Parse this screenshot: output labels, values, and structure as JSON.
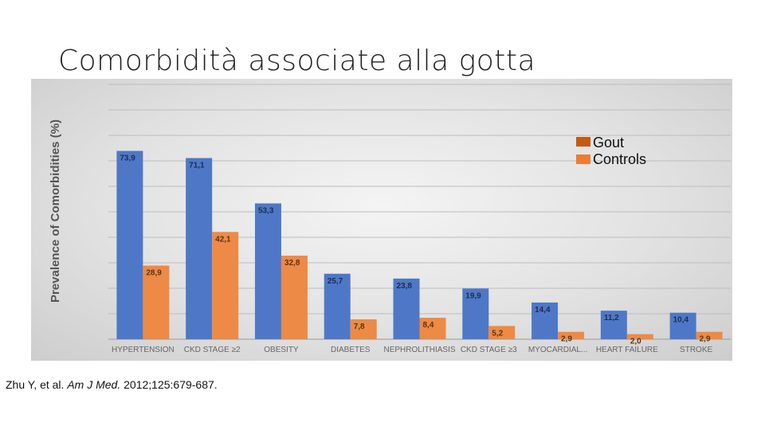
{
  "slide": {
    "title": "Comorbidità associate alla gotta",
    "citation_authors": "Zhu Y, et al.",
    "citation_journal": "Am J Med.",
    "citation_details": "2012;125:679-687."
  },
  "colors": {
    "gout": "#4e78c7",
    "controls": "#ed8a45",
    "legend_gout": "#c55a11",
    "legend_controls": "#ed7d31"
  },
  "chart_data": {
    "type": "bar",
    "ylabel": "Prevalence of Comorbidities (%)",
    "xlabel": "",
    "ylim": [
      0,
      100
    ],
    "grid": true,
    "legend_position": "top-right",
    "categories": [
      "HYPERTENSION",
      "CKD STAGE ≥2",
      "OBESITY",
      "DIABETES",
      "NEPHROLITHIASIS",
      "CKD STAGE ≥3",
      "MYOCARDIAL...",
      "HEART FAILURE",
      "STROKE"
    ],
    "series": [
      {
        "name": "Gout",
        "values": [
          73.9,
          71.1,
          53.3,
          25.7,
          23.8,
          19.9,
          14.4,
          11.2,
          10.4
        ],
        "labels": [
          "73,9",
          "71,1",
          "53,3",
          "25,7",
          "23,8",
          "19,9",
          "14,4",
          "11,2",
          "10,4"
        ]
      },
      {
        "name": "Controls",
        "values": [
          28.9,
          42.1,
          32.8,
          7.8,
          8.4,
          5.2,
          2.9,
          2.0,
          2.9
        ],
        "labels": [
          "28,9",
          "42,1",
          "32,8",
          "7,8",
          "8,4",
          "5,2",
          "2,9",
          "2,0",
          "2,9"
        ]
      }
    ]
  }
}
